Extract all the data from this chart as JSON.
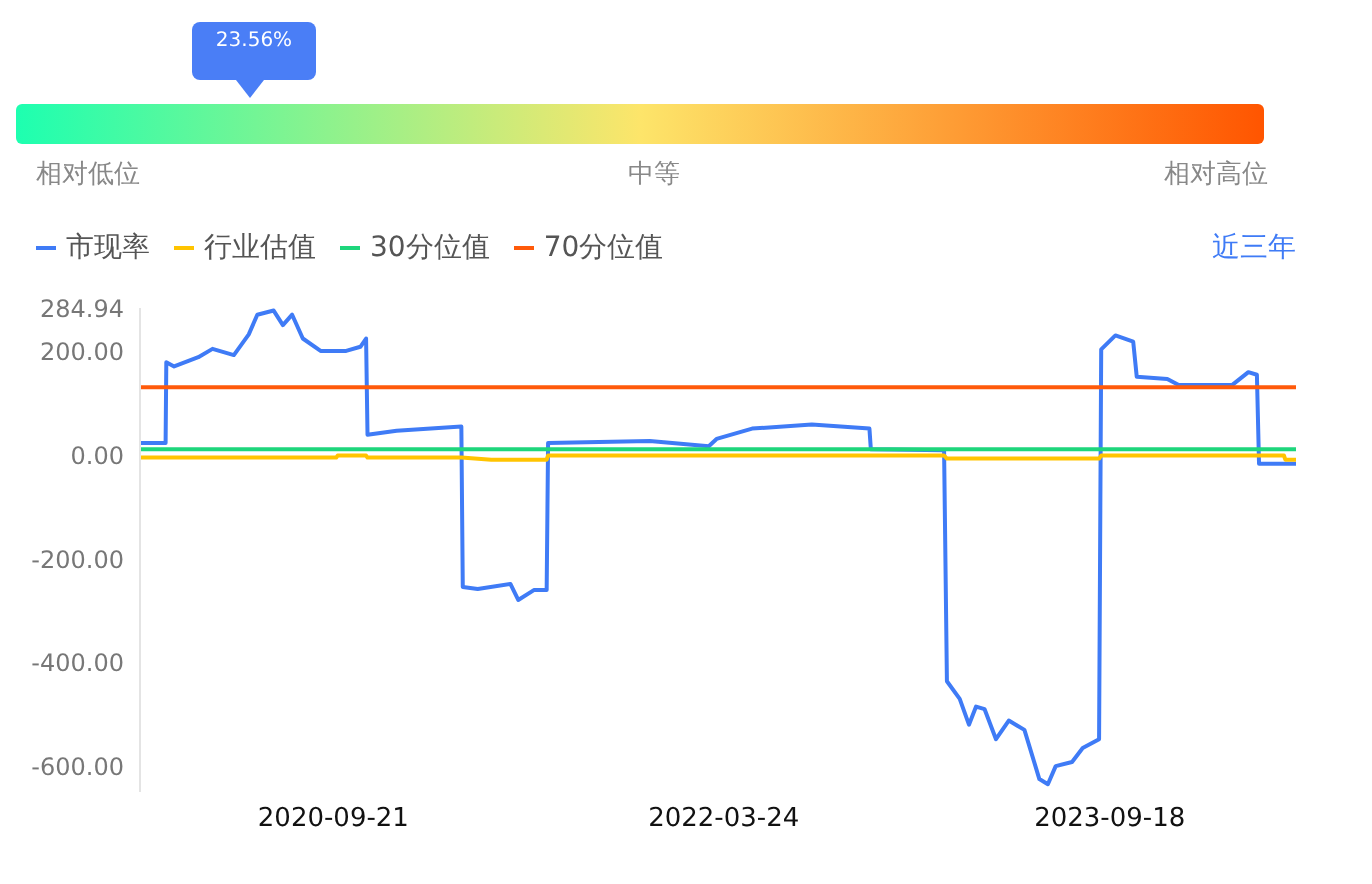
{
  "chart_data": {
    "type": "line",
    "annotations": [
      "23.56%",
      "相对低位",
      "中等",
      "相对高位",
      "近三年"
    ],
    "xlim": [
      "2019-12-24",
      "2024-06-06"
    ],
    "xticks": [
      "2020-09-21",
      "2022-03-24",
      "2023-09-18"
    ],
    "ylim": [
      -650,
      284.94
    ],
    "yticks": [
      284.94,
      {
        "value": 200,
        "label": "200.00"
      },
      {
        "value": 0,
        "label": "0.00"
      },
      {
        "value": -200,
        "label": "-200.00"
      },
      {
        "value": -400,
        "label": "-400.00"
      },
      {
        "value": -600,
        "label": "-600.00"
      }
    ],
    "grid": false,
    "legend": "top left",
    "marker": "none",
    "line_style": "solid",
    "series": [
      {
        "name": "市现率",
        "color": "#3f7bf6",
        "x": [
          "2019-12-24",
          "2020-01-29",
          "2020-01-30",
          "2020-02-10",
          "2020-03-15",
          "2020-04-04",
          "2020-05-04",
          "2020-05-25",
          "2020-06-06",
          "2020-06-29",
          "2020-07-12",
          "2020-07-25",
          "2020-08-09",
          "2020-09-03",
          "2020-10-09",
          "2020-10-29",
          "2020-11-06",
          "2020-11-08",
          "2020-12-19",
          "2021-03-20",
          "2021-03-22",
          "2021-04-12",
          "2021-05-28",
          "2021-06-08",
          "2021-06-30",
          "2021-07-18",
          "2021-07-20",
          "2021-12-10",
          "2022-03-03",
          "2022-03-14",
          "2022-05-03",
          "2022-07-26",
          "2022-10-15",
          "2022-10-17",
          "2023-01-28",
          "2023-02-01",
          "2023-02-19",
          "2023-03-04",
          "2023-03-14",
          "2023-03-26",
          "2023-04-11",
          "2023-04-29",
          "2023-05-21",
          "2023-06-11",
          "2023-06-23",
          "2023-07-04",
          "2023-07-27",
          "2023-08-11",
          "2023-09-03",
          "2023-09-06",
          "2023-09-26",
          "2023-10-21",
          "2023-10-26",
          "2023-12-08",
          "2023-12-24",
          "2024-03-08",
          "2024-03-31",
          "2024-04-12",
          "2024-04-15",
          "2024-06-06"
        ],
        "values": [
          24,
          24,
          180,
          172,
          190,
          206,
          194,
          234,
          272,
          280,
          252,
          272,
          226,
          202,
          202,
          210,
          226,
          40,
          48,
          56,
          -254,
          -258,
          -248,
          -279,
          -260,
          -260,
          24,
          28,
          18,
          32,
          52,
          60,
          52,
          12,
          10,
          -436,
          -470,
          -520,
          -485,
          -490,
          -548,
          -512,
          -530,
          -625,
          -635,
          -600,
          -592,
          -565,
          -548,
          205,
          232,
          220,
          152,
          148,
          136,
          136,
          161,
          156,
          -16,
          -16
        ]
      },
      {
        "name": "行业估值",
        "color": "#ffc400",
        "x": [
          "2019-12-24",
          "2020-09-25",
          "2020-09-27",
          "2020-11-06",
          "2020-11-08",
          "2021-03-20",
          "2021-05-01",
          "2021-07-18",
          "2021-07-20",
          "2022-10-15",
          "2023-01-28",
          "2023-02-01",
          "2023-09-03",
          "2023-09-06",
          "2024-05-20",
          "2024-05-22",
          "2024-06-06"
        ],
        "values": [
          -4,
          -4,
          0,
          0,
          -4,
          -4,
          -8,
          -8,
          0,
          0,
          0,
          -6,
          -6,
          0,
          0,
          -8,
          -8
        ]
      },
      {
        "name": "30分位值",
        "color": "#1ed67c",
        "x": [
          "2019-12-24",
          "2024-06-06"
        ],
        "values": [
          12,
          12
        ]
      },
      {
        "name": "70分位值",
        "color": "#ff5a0a",
        "x": [
          "2019-12-24",
          "2024-06-06"
        ],
        "values": [
          132,
          132
        ]
      }
    ]
  }
}
